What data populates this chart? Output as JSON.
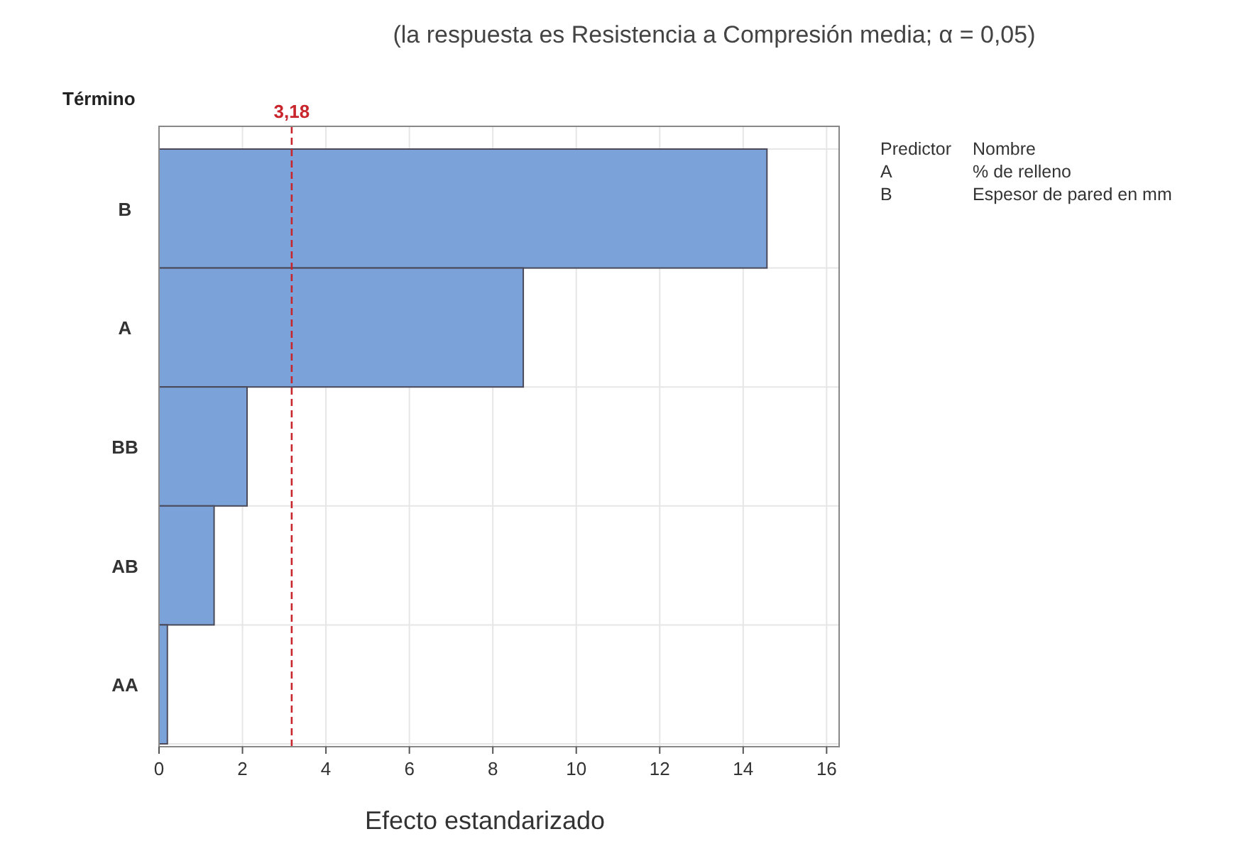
{
  "chart_data": {
    "type": "bar",
    "orientation": "horizontal",
    "subtitle": "(la respuesta es Resistencia a Compresión media; α = 0,05)",
    "ylabel": "Término",
    "xlabel": "Efecto estandarizado",
    "categories": [
      "B",
      "A",
      "BB",
      "AB",
      "AA"
    ],
    "values": [
      14.57,
      8.73,
      2.11,
      1.32,
      0.2
    ],
    "color": "#7ba3d9",
    "xlim": [
      0,
      16.3
    ],
    "xticks": [
      0,
      2,
      4,
      6,
      8,
      10,
      12,
      14,
      16
    ],
    "grid": true,
    "ref_lines": [
      {
        "axis": "x",
        "value": 3.18,
        "label": "3,18",
        "color": "#c8262c",
        "line_style": "dashed"
      }
    ],
    "annotations": [
      "Predictor",
      "Nombre",
      "A",
      "% de relleno",
      "B",
      "Espesor de pared en mm"
    ]
  }
}
